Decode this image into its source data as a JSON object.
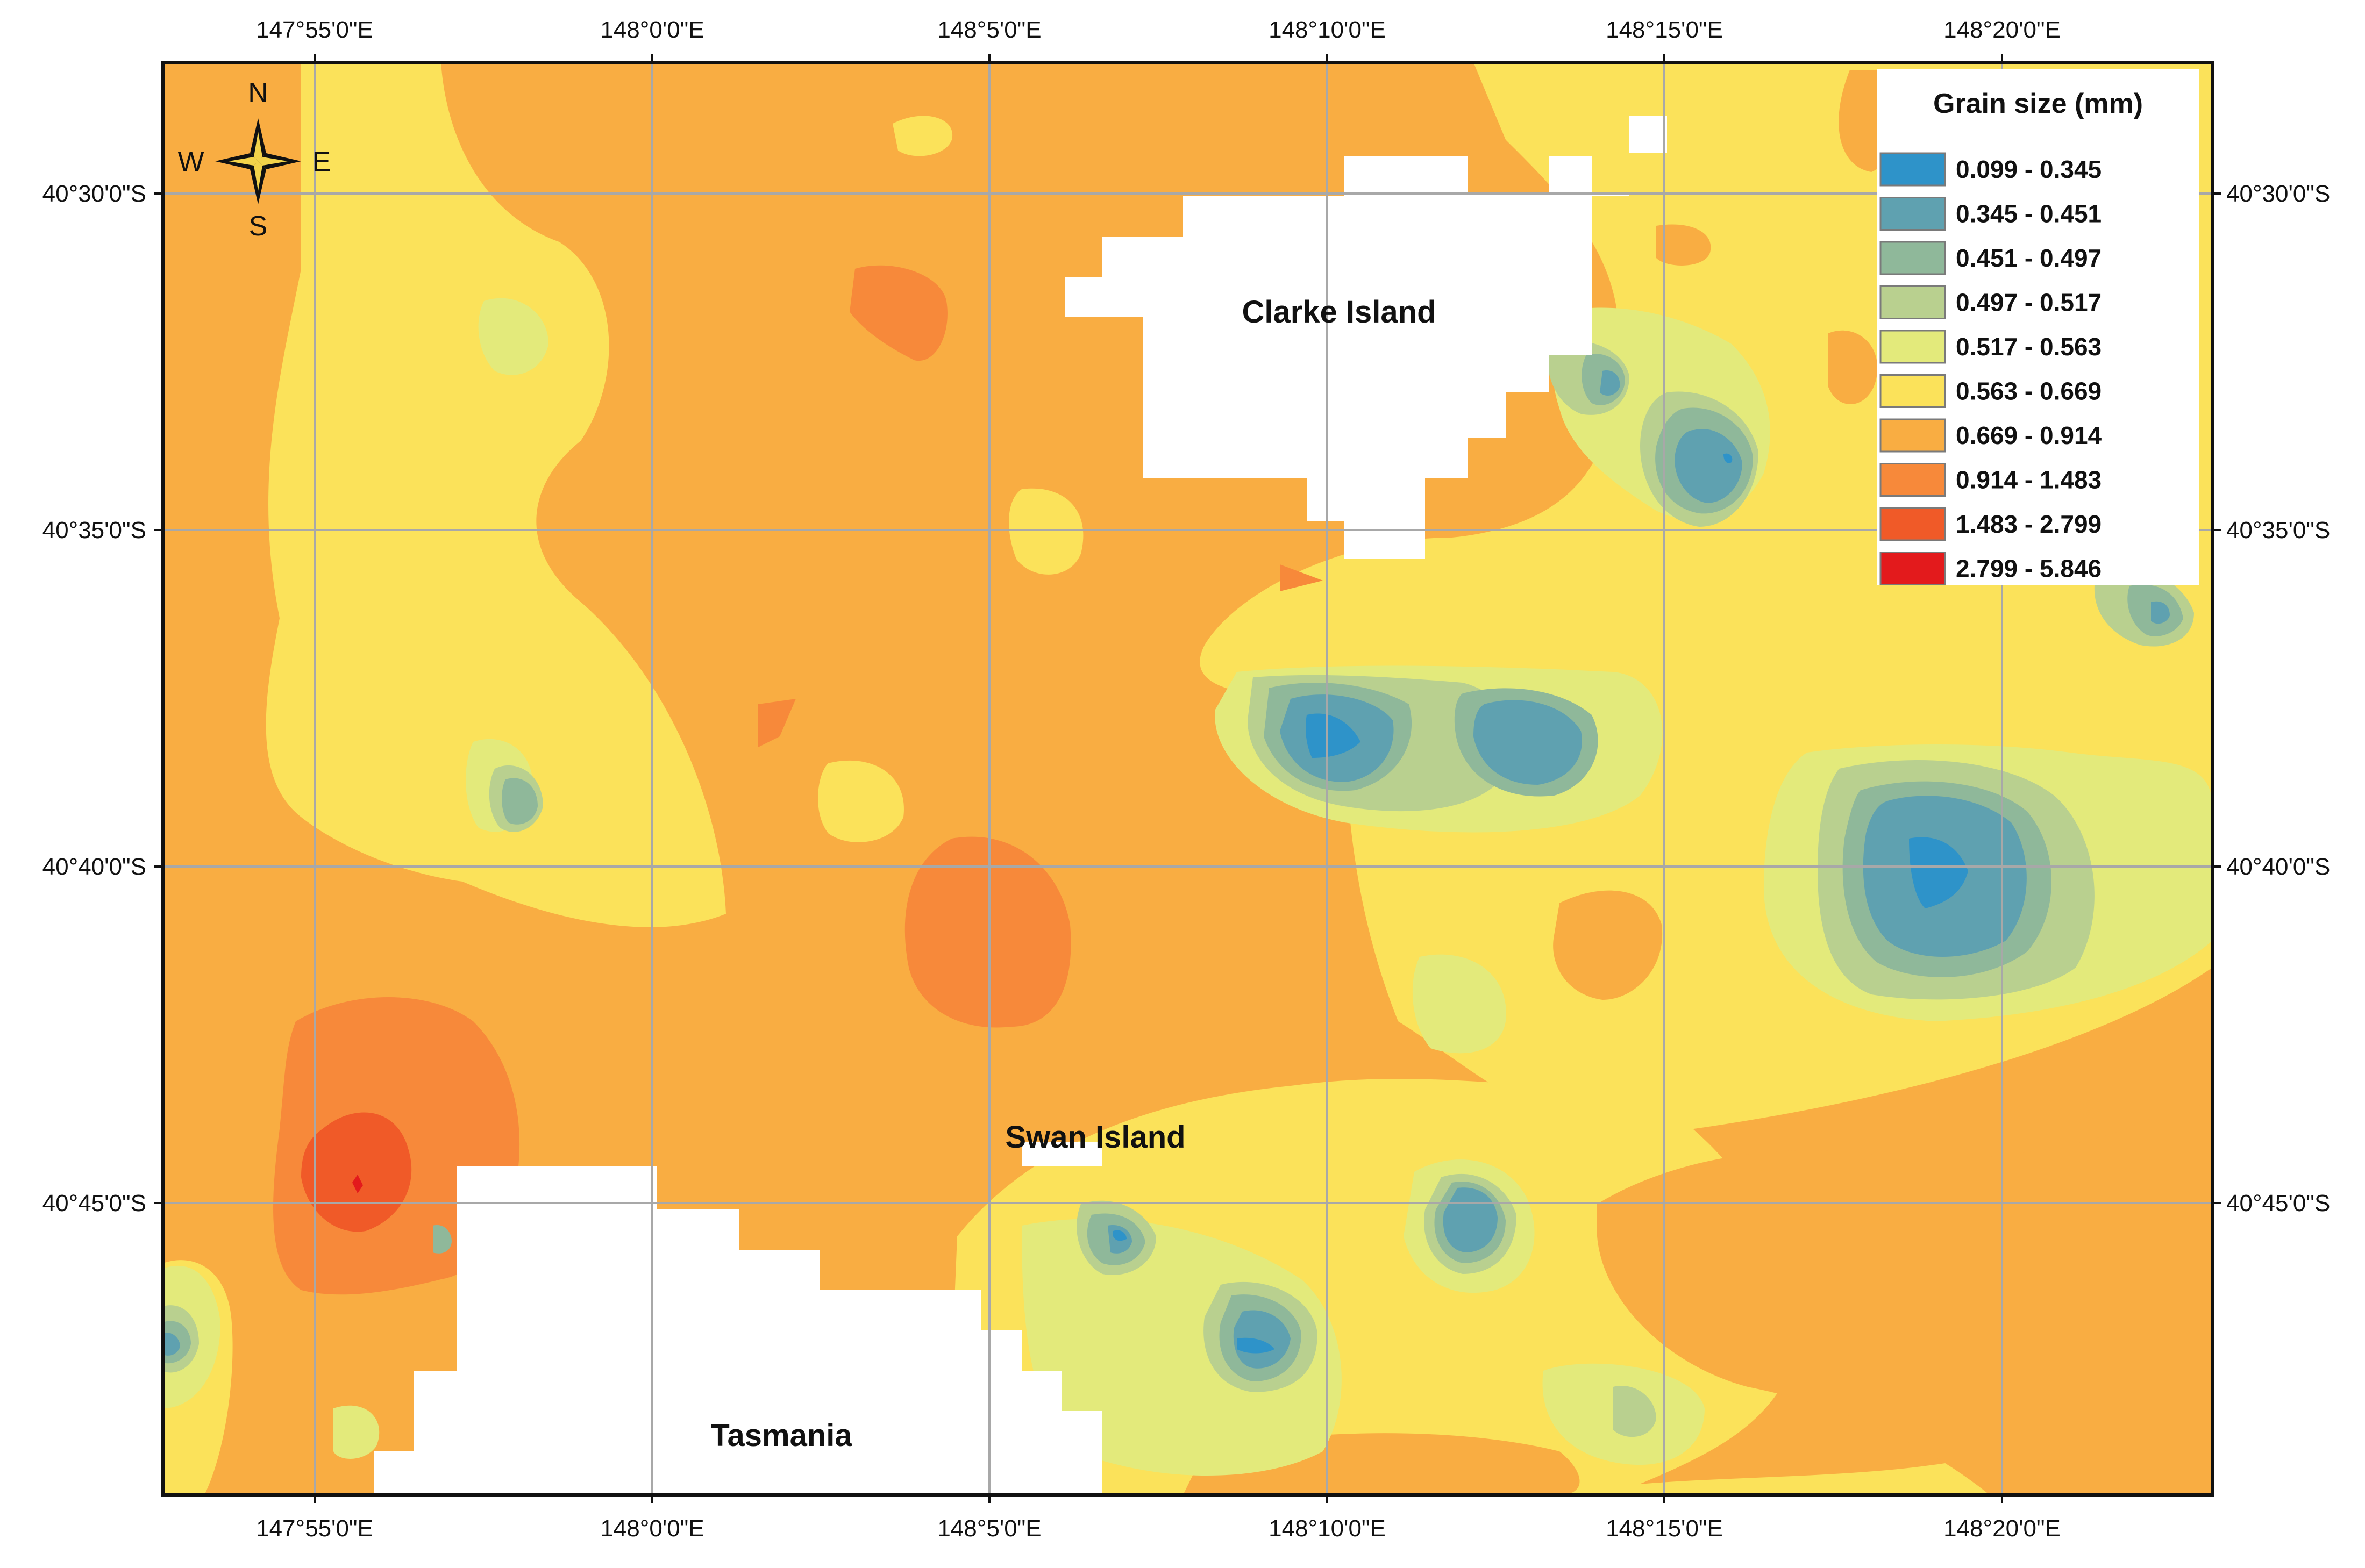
{
  "map": {
    "legend": {
      "title": "Grain size (mm)",
      "classes": [
        {
          "label": "0.099 - 0.345",
          "color": "#2e93c9"
        },
        {
          "label": "0.345 - 0.451",
          "color": "#5fa1b0"
        },
        {
          "label": "0.451 - 0.497",
          "color": "#8fb89a"
        },
        {
          "label": "0.497 - 0.517",
          "color": "#b9d08f"
        },
        {
          "label": "0.517 - 0.563",
          "color": "#e3ea7b"
        },
        {
          "label": "0.563 - 0.669",
          "color": "#fbe25a"
        },
        {
          "label": "0.669 - 0.914",
          "color": "#f9ad42"
        },
        {
          "label": "0.914 - 1.483",
          "color": "#f7893a"
        },
        {
          "label": "1.483 - 2.799",
          "color": "#f05a28"
        },
        {
          "label": "2.799 - 5.846",
          "color": "#e31a1c"
        }
      ]
    },
    "longitude_ticks": [
      "147°55'0\"E",
      "148°0'0\"E",
      "148°5'0\"E",
      "148°10'0\"E",
      "148°15'0\"E",
      "148°20'0\"E"
    ],
    "latitude_ticks": [
      "40°30'0\"S",
      "40°35'0\"S",
      "40°40'0\"S",
      "40°45'0\"S"
    ],
    "place_labels": {
      "clarke": "Clarke Island",
      "swan": "Swan Island",
      "tasmania": "Tasmania"
    },
    "compass": {
      "n": "N",
      "s": "S",
      "e": "E",
      "w": "W"
    }
  }
}
